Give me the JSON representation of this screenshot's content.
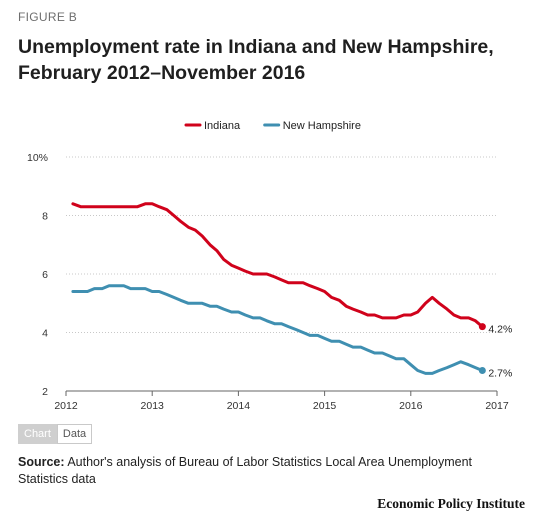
{
  "figure_label": "FIGURE B",
  "title_line1": "Unemployment rate in Indiana and New Hampshire,",
  "title_line2": "February 2012–November 2016",
  "tabs": {
    "chart": "Chart",
    "data": "Data",
    "active": "chart"
  },
  "source": {
    "label": "Source:",
    "text": " Author's analysis of Bureau of Labor Statistics Local Area Unemployment Statistics data"
  },
  "brand": "Economic Policy Institute",
  "colors": {
    "indiana": "#d0021b",
    "new_hampshire": "#3f8fb1"
  },
  "chart_data": {
    "type": "line",
    "xlim": [
      2012,
      2017
    ],
    "ylim": [
      2,
      10
    ],
    "xticks": [
      2012,
      2013,
      2014,
      2015,
      2016,
      2017
    ],
    "yticks": [
      2,
      4,
      6,
      8,
      10
    ],
    "ytick_labels": [
      "2",
      "4",
      "6",
      "8",
      "10%"
    ],
    "grid": "horizontal dotted",
    "legend_position": "top-center",
    "x": [
      2012.08,
      2012.17,
      2012.25,
      2012.33,
      2012.42,
      2012.5,
      2012.58,
      2012.67,
      2012.75,
      2012.83,
      2012.92,
      2013.0,
      2013.08,
      2013.17,
      2013.25,
      2013.33,
      2013.42,
      2013.5,
      2013.58,
      2013.67,
      2013.75,
      2013.83,
      2013.92,
      2014.0,
      2014.08,
      2014.17,
      2014.25,
      2014.33,
      2014.42,
      2014.5,
      2014.58,
      2014.67,
      2014.75,
      2014.83,
      2014.92,
      2015.0,
      2015.08,
      2015.17,
      2015.25,
      2015.33,
      2015.42,
      2015.5,
      2015.58,
      2015.67,
      2015.75,
      2015.83,
      2015.92,
      2016.0,
      2016.08,
      2016.17,
      2016.25,
      2016.33,
      2016.42,
      2016.5,
      2016.58,
      2016.67,
      2016.75,
      2016.83
    ],
    "series": [
      {
        "name": "Indiana",
        "color": "#d0021b",
        "end_label": "4.2%",
        "values": [
          8.4,
          8.3,
          8.3,
          8.3,
          8.3,
          8.3,
          8.3,
          8.3,
          8.3,
          8.3,
          8.4,
          8.4,
          8.3,
          8.2,
          8.0,
          7.8,
          7.6,
          7.5,
          7.3,
          7.0,
          6.8,
          6.5,
          6.3,
          6.2,
          6.1,
          6.0,
          6.0,
          6.0,
          5.9,
          5.8,
          5.7,
          5.7,
          5.7,
          5.6,
          5.5,
          5.4,
          5.2,
          5.1,
          4.9,
          4.8,
          4.7,
          4.6,
          4.6,
          4.5,
          4.5,
          4.5,
          4.6,
          4.6,
          4.7,
          5.0,
          5.2,
          5.0,
          4.8,
          4.6,
          4.5,
          4.5,
          4.4,
          4.2
        ]
      },
      {
        "name": "New Hampshire",
        "color": "#3f8fb1",
        "end_label": "2.7%",
        "values": [
          5.4,
          5.4,
          5.4,
          5.5,
          5.5,
          5.6,
          5.6,
          5.6,
          5.5,
          5.5,
          5.5,
          5.4,
          5.4,
          5.3,
          5.2,
          5.1,
          5.0,
          5.0,
          5.0,
          4.9,
          4.9,
          4.8,
          4.7,
          4.7,
          4.6,
          4.5,
          4.5,
          4.4,
          4.3,
          4.3,
          4.2,
          4.1,
          4.0,
          3.9,
          3.9,
          3.8,
          3.7,
          3.7,
          3.6,
          3.5,
          3.5,
          3.4,
          3.3,
          3.3,
          3.2,
          3.1,
          3.1,
          2.9,
          2.7,
          2.6,
          2.6,
          2.7,
          2.8,
          2.9,
          3.0,
          2.9,
          2.8,
          2.7
        ]
      }
    ]
  }
}
